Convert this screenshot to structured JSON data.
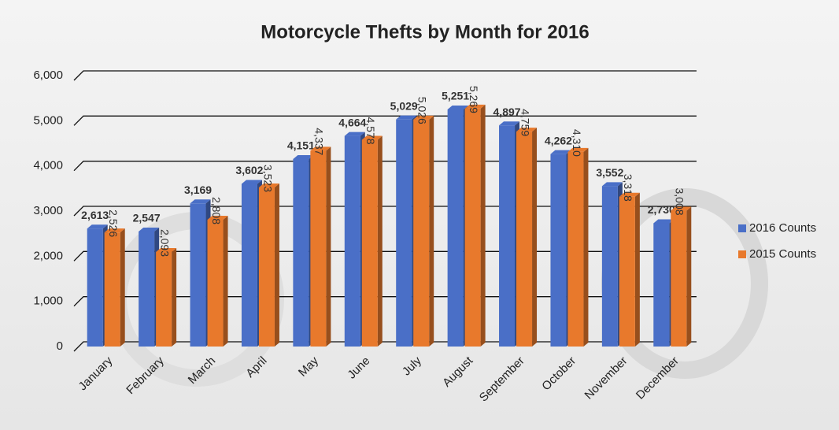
{
  "chart_data": {
    "type": "bar3d",
    "title": "Motorcycle Thefts by Month for 2016",
    "categories": [
      "January",
      "February",
      "March",
      "April",
      "May",
      "June",
      "July",
      "August",
      "September",
      "October",
      "November",
      "December"
    ],
    "series": [
      {
        "name": "2016 Counts",
        "color": "#4a6fc7",
        "values": [
          2613,
          2547,
          3169,
          3602,
          4151,
          4664,
          5029,
          5251,
          4897,
          4262,
          3552,
          2730
        ],
        "value_labels": [
          "2,613",
          "2,547",
          "3,169",
          "3,602",
          "4,151",
          "4,664",
          "5,029",
          "5,251",
          "4,897",
          "4,262",
          "3,552",
          "2,730"
        ]
      },
      {
        "name": "2015 Counts",
        "color": "#e8792c",
        "values": [
          2526,
          2093,
          2808,
          3523,
          4337,
          4578,
          5026,
          5269,
          4759,
          4310,
          3318,
          3008
        ],
        "value_labels": [
          "2,526",
          "2,093",
          "2,808",
          "3,523",
          "4,337",
          "4,578",
          "5,026",
          "5,269",
          "4,759",
          "4,310",
          "3,318",
          "3,008"
        ]
      }
    ],
    "ylim": [
      0,
      6000
    ],
    "yticks": [
      0,
      {
        "value": 1000,
        "label": "1,000"
      },
      {
        "value": 2000,
        "label": "2,000"
      },
      {
        "value": 3000,
        "label": "3,000"
      },
      {
        "value": 4000,
        "label": "4,000"
      },
      {
        "value": 5000,
        "label": "5,000"
      },
      {
        "value": 6000,
        "label": "6,000"
      }
    ],
    "grid": true,
    "legend": "right"
  }
}
